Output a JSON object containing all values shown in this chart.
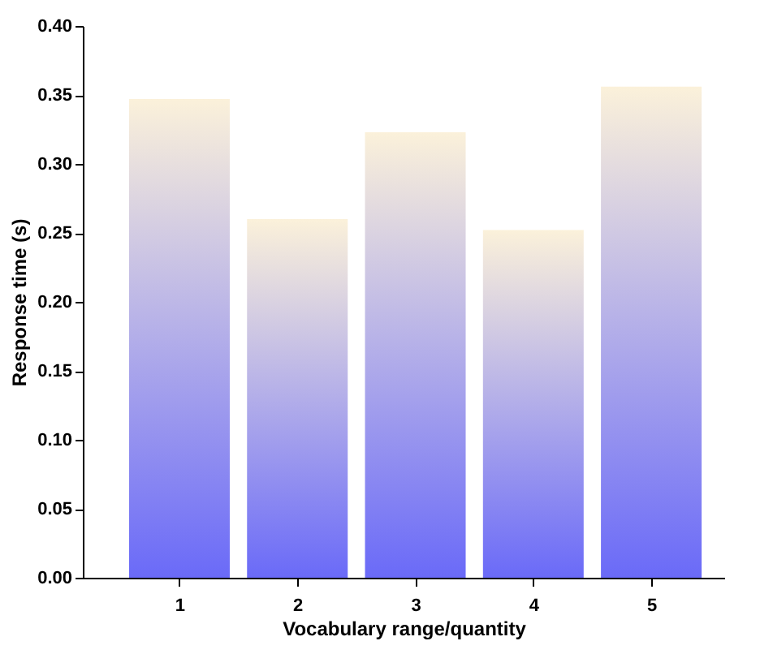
{
  "chart_data": {
    "type": "bar",
    "xlabel": "Vocabulary range/quantity",
    "ylabel": "Response time (s)",
    "categories": [
      "1",
      "2",
      "3",
      "4",
      "5"
    ],
    "values": [
      0.347,
      0.26,
      0.323,
      0.252,
      0.356
    ],
    "color": "#6a6af8",
    "ylim": [
      0,
      0.4
    ],
    "yticks": [
      {
        "value": 0,
        "label": "0.00"
      },
      {
        "value": 0.05,
        "label": "0.05"
      },
      {
        "value": 0.1,
        "label": "0.10"
      },
      {
        "value": 0.15,
        "label": "0.15"
      },
      {
        "value": 0.2,
        "label": "0.20"
      },
      {
        "value": 0.25,
        "label": "0.25"
      },
      {
        "value": 0.3,
        "label": "0.30"
      },
      {
        "value": 0.35,
        "label": "0.35"
      },
      {
        "value": 0.4,
        "label": "0.40"
      }
    ],
    "grid": false
  }
}
